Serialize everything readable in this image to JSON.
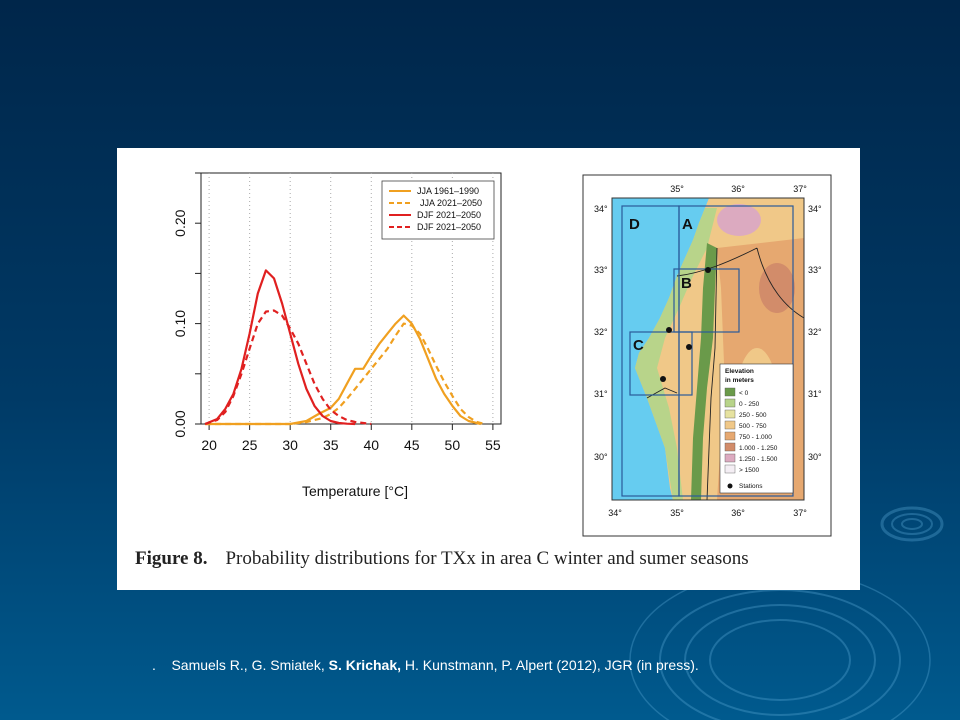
{
  "colors": {
    "jja": "#f0a020",
    "djf": "#e02020",
    "sea": "#66ccf0",
    "background_top": "#00264a",
    "background_bottom": "#005a8e"
  },
  "chart_data": [
    {
      "type": "line",
      "xlabel": "Temperature [°C]",
      "ylabel": "",
      "xlim": [
        19,
        56
      ],
      "ylim": [
        0,
        0.25
      ],
      "xticks": [
        20,
        25,
        30,
        35,
        40,
        45,
        50,
        55
      ],
      "yticks": [
        0.0,
        0.1,
        0.2
      ],
      "ytick_labels": [
        "0.00",
        "0.10",
        "0.20"
      ],
      "grid": "vertical dotted",
      "legend_position": "top-right",
      "series": [
        {
          "name": "JJA 1961–1990",
          "color": "#f0a020",
          "dash": "solid",
          "x": [
            19.5,
            30,
            32,
            33.5,
            35,
            36,
            37,
            38,
            39,
            40,
            41,
            42,
            43,
            44,
            45,
            46,
            47,
            48,
            49,
            50,
            51,
            52,
            53,
            53.5
          ],
          "y": [
            0,
            0,
            0.003,
            0.01,
            0.016,
            0.025,
            0.04,
            0.055,
            0.055,
            0.068,
            0.08,
            0.09,
            0.1,
            0.108,
            0.1,
            0.085,
            0.065,
            0.045,
            0.03,
            0.018,
            0.008,
            0.003,
            0.001,
            0
          ]
        },
        {
          "name": "JJA 2021–2050",
          "color": "#f0a020",
          "dash": "dashed",
          "x": [
            19.5,
            30,
            32,
            34,
            35,
            36,
            37,
            38,
            39,
            40,
            41,
            42,
            43,
            44,
            45,
            46,
            47,
            48,
            49,
            50,
            51,
            52,
            53,
            54
          ],
          "y": [
            0,
            0,
            0.002,
            0.006,
            0.01,
            0.016,
            0.025,
            0.035,
            0.045,
            0.055,
            0.065,
            0.075,
            0.088,
            0.1,
            0.098,
            0.09,
            0.075,
            0.058,
            0.042,
            0.028,
            0.015,
            0.007,
            0.002,
            0
          ]
        },
        {
          "name": "DJF 2021–2050",
          "color": "#e02020",
          "dash": "solid",
          "x": [
            19.5,
            21,
            22,
            23,
            24,
            25,
            26,
            27,
            28,
            29,
            30,
            31,
            32,
            33,
            34,
            35,
            36,
            37,
            38
          ],
          "y": [
            0,
            0.005,
            0.015,
            0.03,
            0.055,
            0.09,
            0.13,
            0.153,
            0.145,
            0.12,
            0.09,
            0.06,
            0.035,
            0.018,
            0.008,
            0.003,
            0.001,
            0.0003,
            0
          ]
        },
        {
          "name": "DJF 2021–2050",
          "color": "#e02020",
          "dash": "dashed",
          "x": [
            19.5,
            21,
            22,
            23,
            24,
            25,
            26,
            27,
            28,
            29,
            30,
            31,
            32,
            33,
            34,
            35,
            36,
            37,
            38,
            39,
            40
          ],
          "y": [
            0,
            0.004,
            0.012,
            0.028,
            0.05,
            0.075,
            0.1,
            0.112,
            0.113,
            0.108,
            0.095,
            0.08,
            0.06,
            0.04,
            0.025,
            0.014,
            0.008,
            0.004,
            0.002,
            0.001,
            0
          ]
        }
      ]
    }
  ],
  "map": {
    "top_longitudes": [
      "35°",
      "36°",
      "37°"
    ],
    "bottom_longitudes": [
      "34°",
      "35°",
      "36°",
      "37°"
    ],
    "left_latitudes": [
      "34°",
      "33°",
      "32°",
      "31°",
      "30°"
    ],
    "right_latitudes": [
      "34°",
      "33°",
      "32°",
      "31°",
      "30°"
    ],
    "regions": [
      "D",
      "A",
      "B",
      "C"
    ],
    "legend": {
      "title_line1": "Elevation",
      "title_line2": "in meters",
      "items": [
        {
          "label": "< 0",
          "color": "#6a9a4a"
        },
        {
          "label": "0 - 250",
          "color": "#b8d48a"
        },
        {
          "label": "250 - 500",
          "color": "#e6e2a0"
        },
        {
          "label": "500 - 750",
          "color": "#f0c888"
        },
        {
          "label": "750 - 1.000",
          "color": "#e6a870"
        },
        {
          "label": "1.000 - 1.250",
          "color": "#d28c6a"
        },
        {
          "label": "1.250 - 1.500",
          "color": "#dcaac0"
        },
        {
          "label": "> 1500",
          "color": "#f4eef4"
        }
      ],
      "stations_label": "Stations"
    }
  },
  "caption": {
    "label": "Figure 8.",
    "text": "Probability distributions for TXx in area C winter and sumer seasons"
  },
  "reference": {
    "bullet": ".",
    "part1": "Samuels R., G. Smiatek,",
    "bold": "S. Krichak,",
    "part2": "H. Kunstmann, P. Alpert (2012), JGR (in press)."
  }
}
